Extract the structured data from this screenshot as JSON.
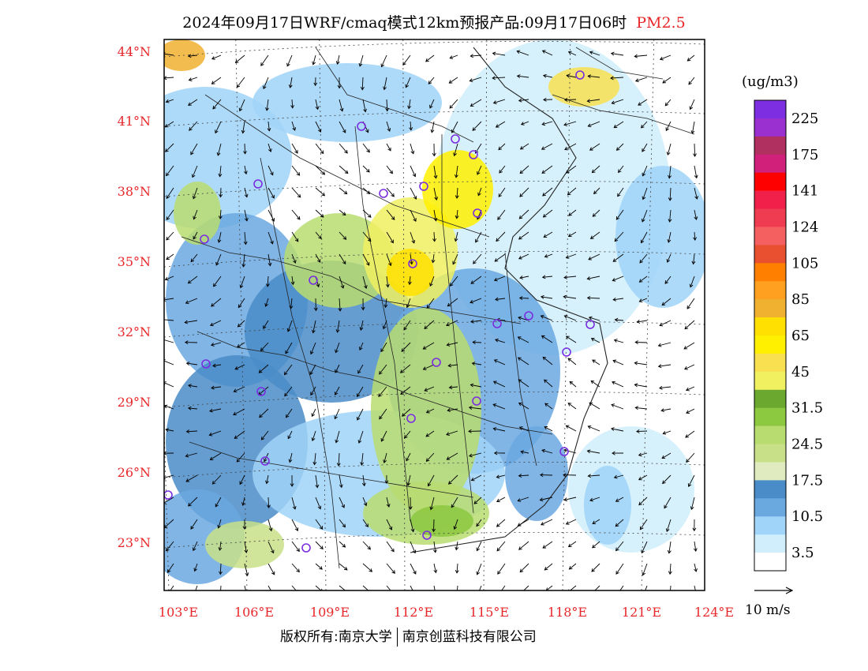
{
  "title": {
    "main": "2024年09月17日WRF/cmaq模式12km预报产品:09月17日06时",
    "pollutant": "PM2.5"
  },
  "map": {
    "lat_labels": [
      "44°N",
      "41°N",
      "38°N",
      "35°N",
      "32°N",
      "29°N",
      "26°N",
      "23°N"
    ],
    "lon_labels": [
      "103°E",
      "106°E",
      "109°E",
      "112°E",
      "115°E",
      "118°E",
      "121°E",
      "124°E"
    ]
  },
  "colorbar": {
    "unit": "(ug/m3)",
    "labels": [
      "225",
      "175",
      "141",
      "124",
      "105",
      "85",
      "65",
      "45",
      "31.5",
      "24.5",
      "17.5",
      "10.5",
      "3.5"
    ],
    "colors": [
      "#7d2ee0",
      "#9b30d0",
      "#b03060",
      "#d0207a",
      "#ff0000",
      "#f0204a",
      "#f03c50",
      "#f46060",
      "#e85030",
      "#ff8000",
      "#ffa020",
      "#f0b030",
      "#ffe000",
      "#fff000",
      "#f8e050",
      "#f0f060",
      "#6aa830",
      "#8cc840",
      "#b8dc70",
      "#c8e088",
      "#e0ecc0",
      "#4a8cc8",
      "#6aa8e0",
      "#a0d4f8",
      "#d0eefc",
      "#ffffff"
    ]
  },
  "wind_legend": {
    "label": "10 m/s"
  },
  "footer": {
    "left": "版权所有:南京大学",
    "right": "南京创蓝科技有限公司"
  }
}
